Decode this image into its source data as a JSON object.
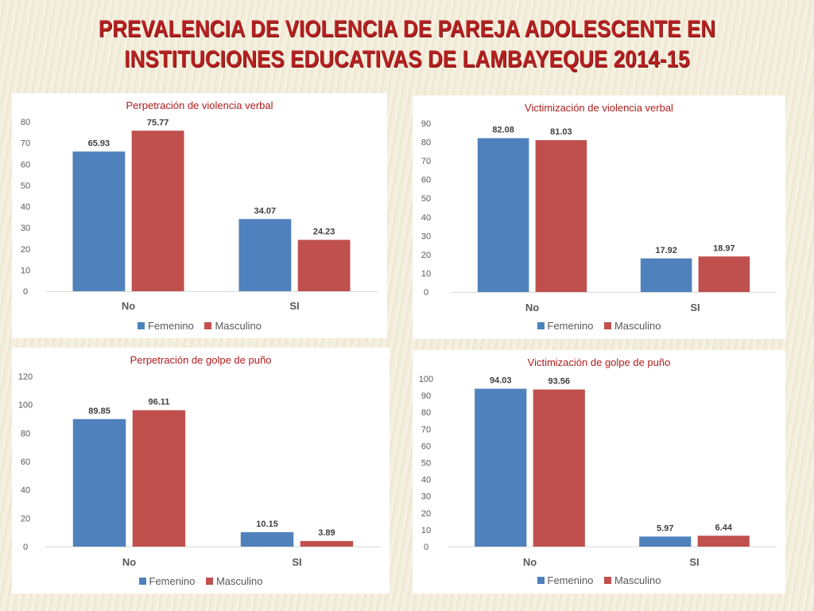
{
  "slide": {
    "title_line1": "PREVALENCIA DE VIOLENCIA DE PAREJA ADOLESCENTE EN",
    "title_line2": "INSTITUCIONES EDUCATIVAS DE LAMBAYEQUE 2014-15"
  },
  "colors": {
    "femenino": "#4f81bd",
    "masculino": "#c0504d",
    "title": "#b52020",
    "chart_title": "#b01c1c"
  },
  "chart_data": [
    {
      "type": "bar",
      "title": "Perpetración de violencia verbal",
      "categories": [
        "No",
        "SI"
      ],
      "series": [
        {
          "name": "Femenino",
          "values": [
            65.93,
            34.07
          ]
        },
        {
          "name": "Masculino",
          "values": [
            75.77,
            24.23
          ]
        }
      ],
      "value_labels": [
        [
          "65.93",
          "34.07"
        ],
        [
          "75.77",
          "24.23"
        ]
      ],
      "ylim": [
        0,
        80
      ],
      "ystep": 10,
      "grid": false,
      "legend": "bottom"
    },
    {
      "type": "bar",
      "title": "Victimización de violencia verbal",
      "categories": [
        "No",
        "SI"
      ],
      "series": [
        {
          "name": "Femenino",
          "values": [
            82.08,
            17.92
          ]
        },
        {
          "name": "Masculino",
          "values": [
            81.03,
            18.97
          ]
        }
      ],
      "value_labels": [
        [
          "82.08",
          "17.92"
        ],
        [
          "81.03",
          "18.97"
        ]
      ],
      "ylim": [
        0,
        90
      ],
      "ystep": 10,
      "grid": false,
      "legend": "bottom"
    },
    {
      "type": "bar",
      "title": "Perpetración de golpe de puño",
      "categories": [
        "No",
        "SI"
      ],
      "series": [
        {
          "name": "Femenino",
          "values": [
            89.85,
            10.15
          ]
        },
        {
          "name": "Masculino",
          "values": [
            96.11,
            3.89
          ]
        }
      ],
      "value_labels": [
        [
          "89.85",
          "10.15"
        ],
        [
          "96.11",
          "3.89"
        ]
      ],
      "ylim": [
        0,
        120
      ],
      "ystep": 20,
      "grid": false,
      "legend": "bottom"
    },
    {
      "type": "bar",
      "title": "Victimización de golpe de puño",
      "categories": [
        "No",
        "SI"
      ],
      "series": [
        {
          "name": "Femenino",
          "values": [
            94.03,
            5.97
          ]
        },
        {
          "name": "Masculino",
          "values": [
            93.56,
            6.44
          ]
        }
      ],
      "value_labels": [
        [
          "94.03",
          "5.97"
        ],
        [
          "93.56",
          "6.44"
        ]
      ],
      "ylim": [
        0,
        100
      ],
      "ystep": 10,
      "grid": false,
      "legend": "bottom"
    }
  ]
}
